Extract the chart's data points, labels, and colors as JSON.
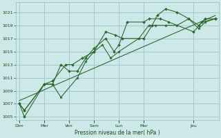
{
  "bg_color": "#cce8e8",
  "grid_color": "#99bbbb",
  "line_color": "#2d6a2d",
  "xlabel": "Pression niveau de la mer( hPa )",
  "ylim": [
    1004.5,
    1022.5
  ],
  "yticks": [
    1005,
    1007,
    1009,
    1011,
    1013,
    1015,
    1017,
    1019,
    1021
  ],
  "xlim": [
    -0.2,
    12.0
  ],
  "major_day_labels": [
    "Dim",
    "Mer",
    "Ven",
    "Sam",
    "Lun",
    "Mar",
    "Jeu"
  ],
  "major_day_positions": [
    0.0,
    1.5,
    3.0,
    4.5,
    6.0,
    7.5,
    10.5
  ],
  "series1": {
    "x": [
      0.0,
      0.3,
      1.5,
      2.0,
      2.8,
      3.2,
      3.8,
      4.5,
      5.2,
      5.8,
      6.2,
      7.5,
      8.0,
      8.3,
      8.8,
      9.5,
      10.2,
      10.8,
      11.2,
      11.8
    ],
    "y": [
      1007,
      1006,
      1010,
      1010.5,
      1013,
      1013,
      1014,
      1015,
      1018,
      1017.5,
      1017,
      1017,
      1019,
      1020.5,
      1021.5,
      1021,
      1020,
      1019,
      1020,
      1020
    ]
  },
  "series2": {
    "x": [
      0.0,
      0.3,
      1.5,
      2.0,
      2.5,
      3.0,
      3.5,
      4.0,
      4.5,
      5.2,
      5.7,
      6.0,
      6.5,
      7.5,
      7.8,
      8.5,
      9.0,
      10.5,
      11.0,
      11.8
    ],
    "y": [
      1007,
      1005,
      1010,
      1010,
      1013,
      1012,
      1012,
      1014,
      1015.5,
      1017,
      1015,
      1016,
      1019.5,
      1019.5,
      1020,
      1020,
      1019.5,
      1018,
      1019.5,
      1020
    ]
  },
  "series3": {
    "x": [
      0.0,
      0.3,
      1.5,
      2.0,
      2.5,
      3.5,
      4.0,
      4.5,
      5.0,
      5.5,
      6.0,
      7.2,
      7.8,
      8.2,
      8.8,
      9.5,
      10.2,
      10.8,
      11.2,
      11.8
    ],
    "y": [
      1007,
      1006,
      1010,
      1010,
      1008,
      1011,
      1013.5,
      1015,
      1016,
      1014,
      1015,
      1017,
      1019,
      1019,
      1019,
      1019,
      1020,
      1018.5,
      1019.5,
      1020
    ]
  },
  "series4_linear": {
    "x": [
      0.0,
      11.8
    ],
    "y": [
      1007.5,
      1020.5
    ]
  }
}
